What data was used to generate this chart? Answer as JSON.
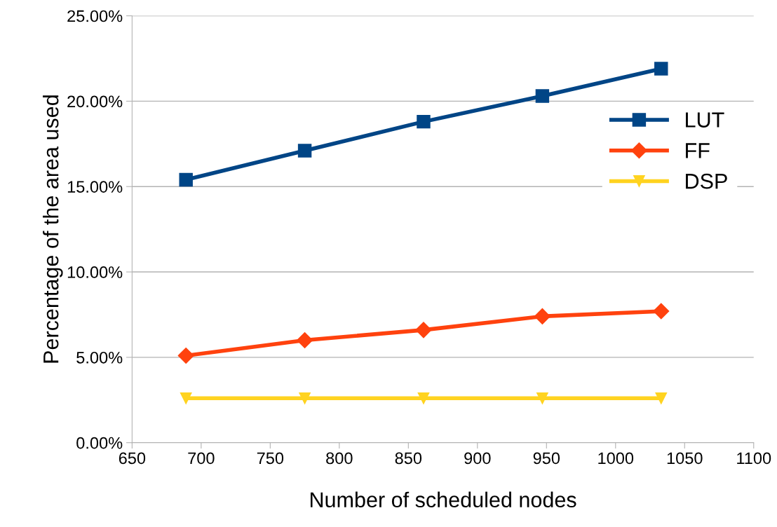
{
  "chart_data": {
    "type": "line",
    "xlabel": "Number of scheduled nodes",
    "ylabel": "Percentage of the area used",
    "xlim": [
      650,
      1100
    ],
    "xticks": [
      650,
      700,
      750,
      800,
      850,
      900,
      950,
      1000,
      1050,
      1100
    ],
    "ylim": [
      0,
      25
    ],
    "yticks": [
      {
        "value": 0,
        "label": "0.00%"
      },
      {
        "value": 5,
        "label": "5.00%"
      },
      {
        "value": 10,
        "label": "10.00%"
      },
      {
        "value": 15,
        "label": "15.00%"
      },
      {
        "value": 20,
        "label": "20.00%"
      },
      {
        "value": 25,
        "label": "25.00%"
      }
    ],
    "grid": "y",
    "legend": "right",
    "x": [
      689,
      775,
      861,
      947,
      1033
    ],
    "series": [
      {
        "name": "LUT",
        "color": "#004586",
        "marker": "square",
        "values": [
          15.4,
          17.1,
          18.8,
          20.3,
          21.9
        ]
      },
      {
        "name": "FF",
        "color": "#ff420e",
        "marker": "diamond",
        "values": [
          5.1,
          6.0,
          6.6,
          7.4,
          7.7
        ]
      },
      {
        "name": "DSP",
        "color": "#ffd320",
        "marker": "triangle",
        "values": [
          2.6,
          2.6,
          2.6,
          2.6,
          2.6
        ]
      }
    ]
  }
}
